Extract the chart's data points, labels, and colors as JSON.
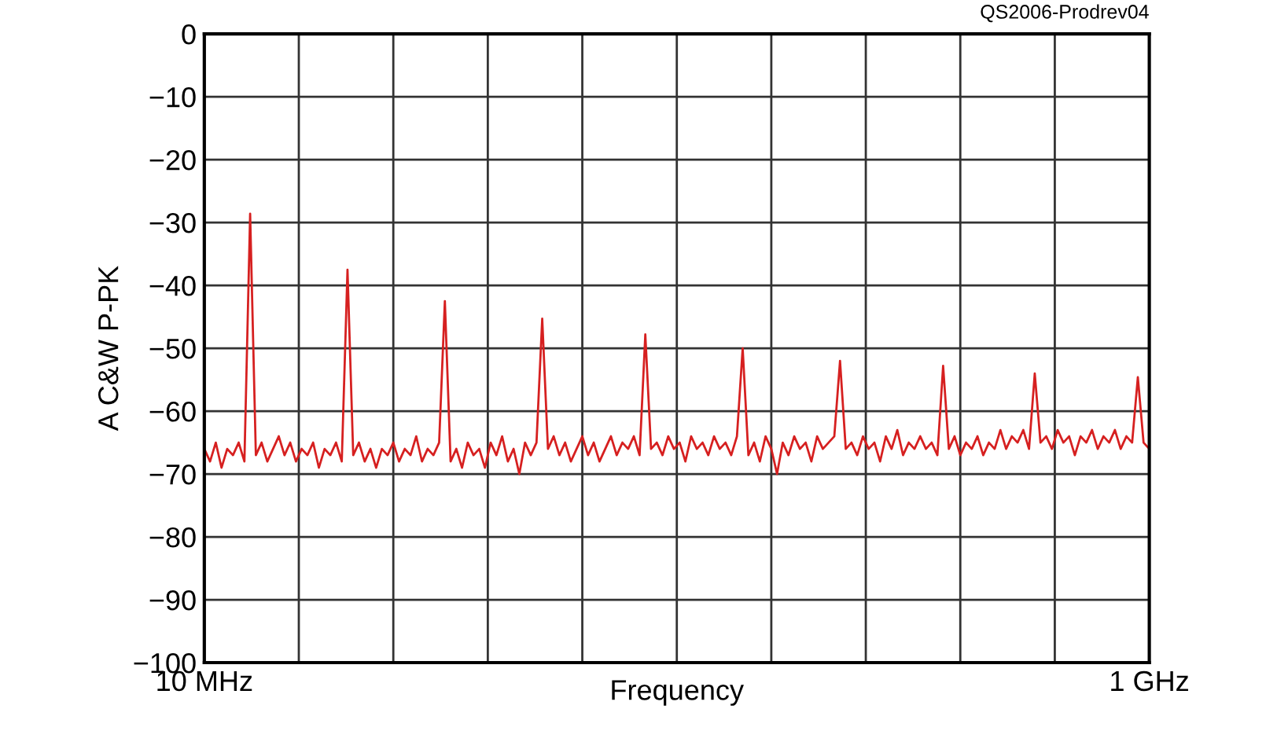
{
  "chart_data": {
    "type": "line",
    "xlabel": "Frequency",
    "ylabel": "A C&W P-PK",
    "annotations": [
      "QS2006-Prodrev04"
    ],
    "categories": [
      "10 MHz",
      null,
      null,
      null,
      null,
      null,
      null,
      null,
      null,
      null,
      null,
      null,
      null,
      null,
      null,
      null,
      null,
      null,
      null,
      null,
      null,
      null,
      null,
      null,
      null,
      null,
      null,
      null,
      null,
      null,
      null,
      null,
      null,
      null,
      null,
      null,
      null,
      null,
      null,
      null,
      null,
      null,
      null,
      null,
      null,
      null,
      null,
      null,
      null,
      null,
      null,
      null,
      null,
      null,
      null,
      null,
      null,
      null,
      null,
      null,
      null,
      null,
      null,
      null,
      null,
      null,
      null,
      null,
      null,
      null,
      null,
      null,
      null,
      null,
      null,
      null,
      null,
      null,
      null,
      null,
      null,
      null,
      null,
      null,
      null,
      null,
      null,
      null,
      null,
      null,
      null,
      null,
      null,
      null,
      null,
      null,
      null,
      null,
      null,
      null,
      null,
      null,
      null,
      null,
      null,
      null,
      null,
      null,
      null,
      null,
      null,
      null,
      null,
      null,
      null,
      null,
      null,
      null,
      null,
      null,
      null,
      null,
      null,
      null,
      null,
      null,
      null,
      null,
      null,
      null,
      null,
      null,
      null,
      null,
      null,
      null,
      null,
      null,
      null,
      null,
      null,
      null,
      null,
      null,
      null,
      null,
      null,
      null,
      null,
      null,
      null,
      null,
      null,
      null,
      null,
      null,
      null,
      null,
      null,
      null,
      null,
      null,
      null,
      null,
      null,
      "1 GHz"
    ],
    "series": [
      {
        "color": "#d62020",
        "values": [
          -66,
          -68,
          -65,
          -69,
          -66,
          -67,
          -65,
          -68,
          -28.6,
          -67,
          -65,
          -68,
          -66,
          -64,
          -67,
          -65,
          -68,
          -66,
          -67,
          -65,
          -69,
          -66,
          -67,
          -65,
          -68,
          -37.5,
          -67,
          -65,
          -68,
          -66,
          -69,
          -66,
          -67,
          -65,
          -68,
          -66,
          -67,
          -64,
          -68,
          -66,
          -67,
          -65,
          -42.5,
          -68,
          -66,
          -69,
          -65,
          -67,
          -66,
          -69,
          -65,
          -67,
          -64,
          -68,
          -66,
          -70,
          -65,
          -67,
          -65,
          -45.3,
          -66,
          -64,
          -67,
          -65,
          -68,
          -66,
          -64,
          -67,
          -65,
          -68,
          -66,
          -64,
          -67,
          -65,
          -66,
          -64,
          -67,
          -47.8,
          -66,
          -65,
          -67,
          -64,
          -66,
          -65,
          -68,
          -64,
          -66,
          -65,
          -67,
          -64,
          -66,
          -65,
          -67,
          -64,
          -50,
          -67,
          -65,
          -68,
          -64,
          -66,
          -70,
          -65,
          -67,
          -64,
          -66,
          -65,
          -68,
          -64,
          -66,
          -65,
          -64,
          -52,
          -66,
          -65,
          -67,
          -64,
          -66,
          -65,
          -68,
          -64,
          -66,
          -63,
          -67,
          -65,
          -66,
          -64,
          -66,
          -65,
          -67,
          -52.8,
          -66,
          -64,
          -67,
          -65,
          -66,
          -64,
          -67,
          -65,
          -66,
          -63,
          -66,
          -64,
          -65,
          -63,
          -66,
          -54,
          -65,
          -64,
          -66,
          -63,
          -65,
          -64,
          -67,
          -64,
          -65,
          -63,
          -66,
          -64,
          -65,
          -63,
          -66,
          -64,
          -65,
          -54.6,
          -65,
          -66
        ]
      }
    ],
    "ylim": [
      -100,
      0
    ],
    "yticks": [
      -100,
      -90,
      -80,
      -70,
      -60,
      -50,
      -40,
      -30,
      -20,
      -10,
      0
    ],
    "grid": true,
    "line_style": "solid"
  }
}
